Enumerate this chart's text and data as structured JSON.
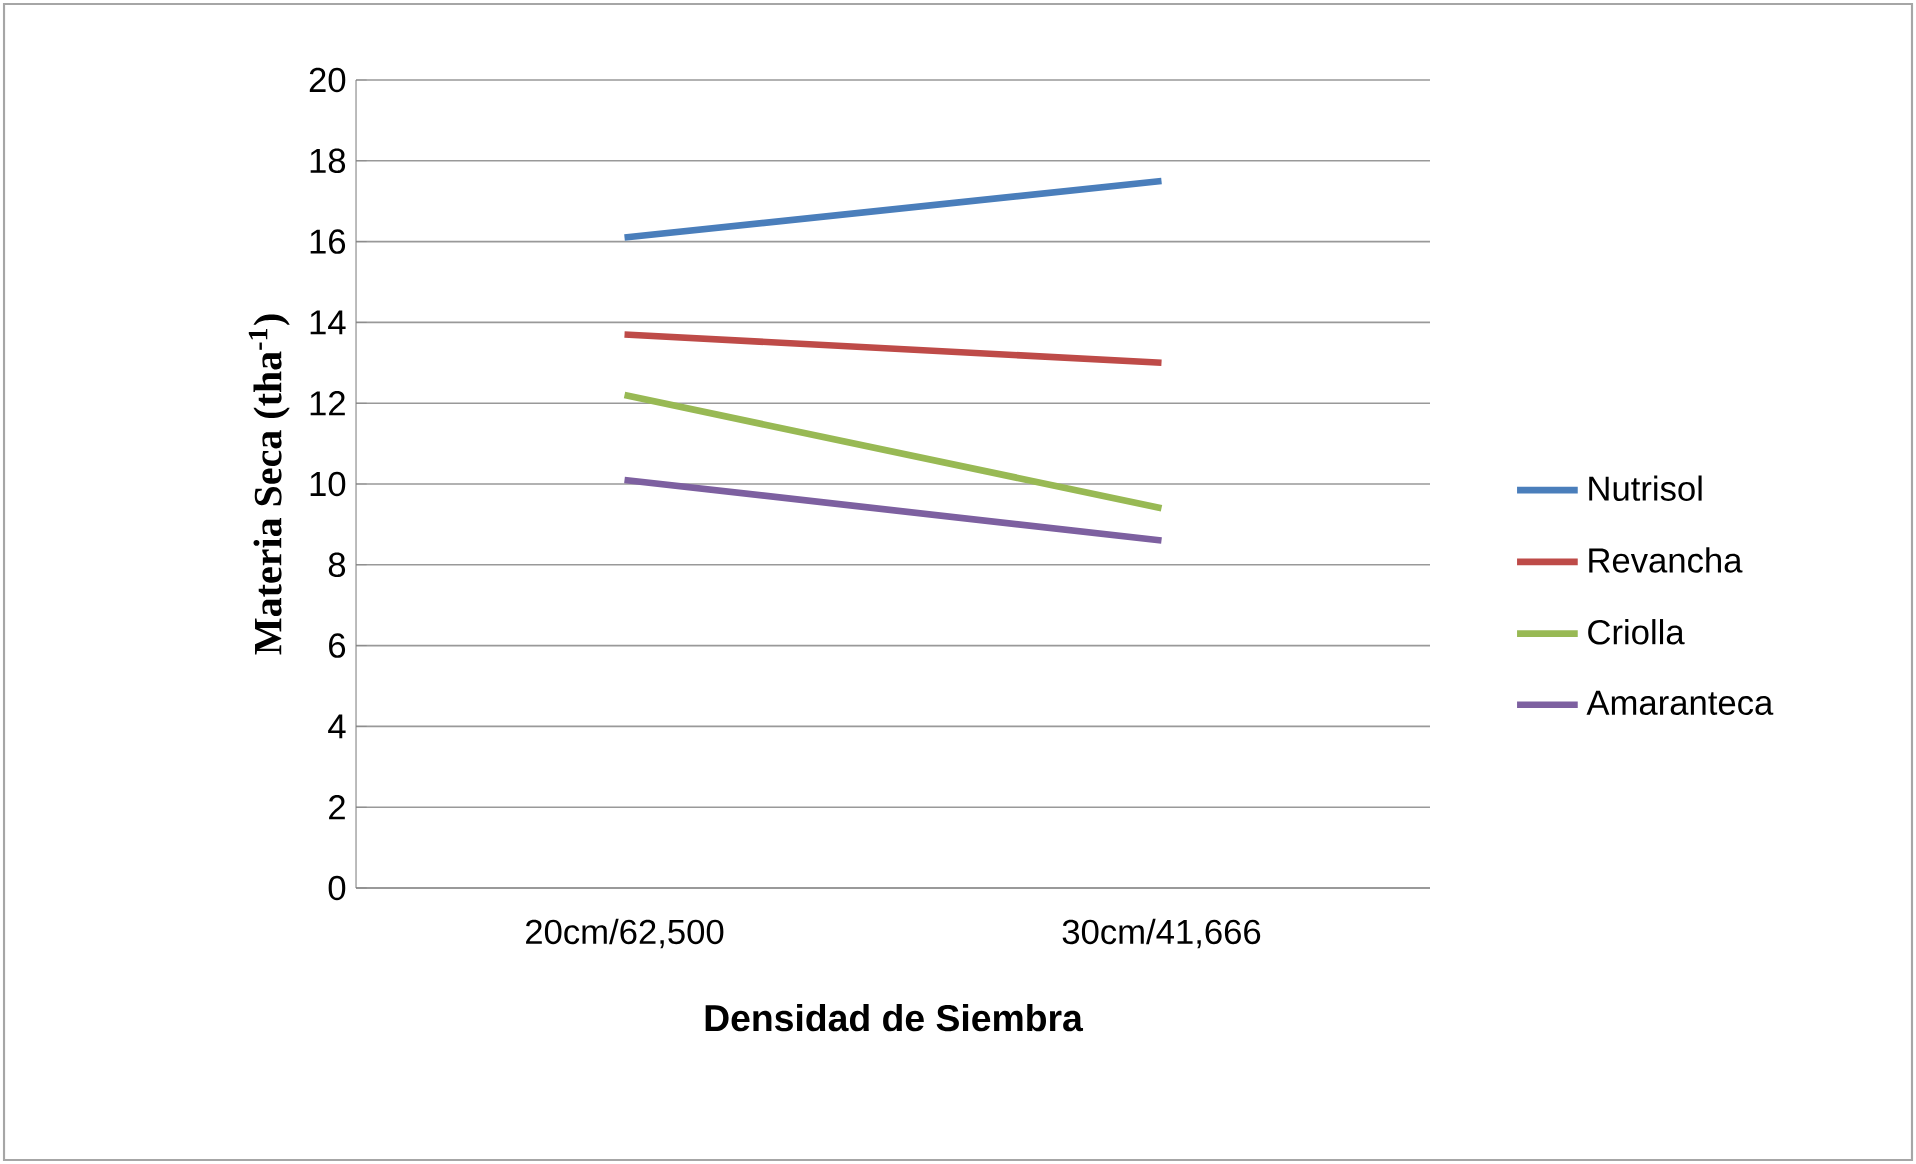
{
  "chart_data": {
    "type": "line",
    "xlabel": "Densidad de Siembra",
    "ylabel": "Materia Seca (tha$^{-1}$)",
    "categories": [
      "20cm/62,500",
      "30cm/41,666"
    ],
    "series": [
      {
        "name": "Nutrisol",
        "color": "#4a7ebb",
        "values": [
          16.1,
          17.5
        ]
      },
      {
        "name": "Revancha",
        "color": "#be4b48",
        "values": [
          13.7,
          13.0
        ]
      },
      {
        "name": "Criolla",
        "color": "#98b954",
        "values": [
          12.2,
          9.4
        ]
      },
      {
        "name": "Amaranteca",
        "color": "#7d60a0",
        "values": [
          10.1,
          8.6
        ]
      }
    ],
    "ylim": [
      0,
      20
    ],
    "yticks": [
      0,
      2,
      4,
      6,
      8,
      10,
      12,
      14,
      16,
      18,
      20
    ],
    "grid": "y",
    "legend": "right"
  }
}
